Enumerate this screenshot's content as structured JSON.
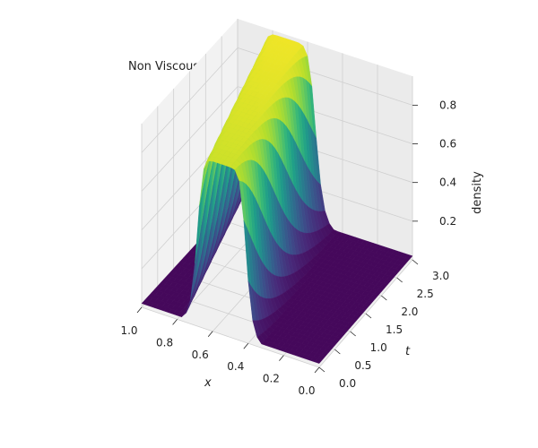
{
  "chart_data": {
    "type": "surface",
    "title": "Non Viscous MFG-LWR",
    "xlabel": "x",
    "ylabel": "t",
    "zlabel": "density",
    "x_ticks": [
      "1.0",
      "0.8",
      "0.6",
      "0.4",
      "0.2",
      "0.0"
    ],
    "t_ticks": [
      "0.0",
      "0.5",
      "1.0",
      "1.5",
      "2.0",
      "2.5",
      "3.0"
    ],
    "z_ticks": [
      "0.2",
      "0.4",
      "0.6",
      "0.8"
    ],
    "xlim": [
      0,
      1
    ],
    "tlim": [
      0,
      3
    ],
    "zlim": [
      0,
      0.95
    ],
    "colormap": "viridis",
    "surface_model": {
      "description_of_values": "density(x,t) is a bump that moves left over time",
      "peak_center_t0": 0.55,
      "peak_center_t3": 0.72,
      "peak_width_t0": 0.28,
      "peak_width_t3": 0.34,
      "peak_height_t0": 0.88,
      "peak_height_t3": 0.93,
      "base_level": 0.02
    }
  }
}
